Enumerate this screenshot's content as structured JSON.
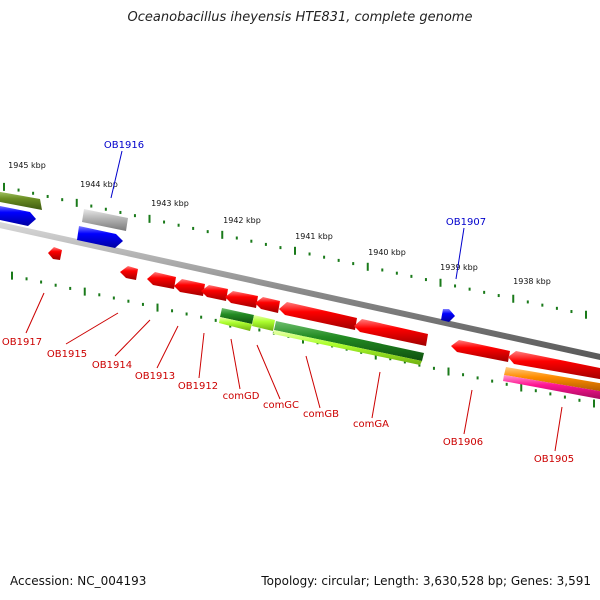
{
  "title": "Oceanobacillus iheyensis HTE831, complete genome",
  "footer": {
    "accession": "Accession: NC_004193",
    "topology": "Topology: circular; Length: 3,630,528 bp; Genes: 3,591"
  },
  "colors": {
    "forward_gene": "#0000ff",
    "reverse_gene": "#ff0000",
    "label_forward": "#0000cc",
    "label_reverse": "#cc0000",
    "tick": "#1a7a1a",
    "backbone": "#888888"
  },
  "scale": {
    "unit": "kbp",
    "ticks": [
      "1945 kbp",
      "1944 kbp",
      "1943 kbp",
      "1942 kbp",
      "1941 kbp",
      "1940 kbp",
      "1939 kbp",
      "1938 kbp"
    ]
  },
  "genes": {
    "labels_forward": [
      "OB1916",
      "OB1907"
    ],
    "labels_reverse": [
      "OB1917",
      "OB1915",
      "OB1914",
      "OB1913",
      "OB1912",
      "comGD",
      "comGC",
      "comGB",
      "comGA",
      "OB1906",
      "OB1905"
    ]
  }
}
